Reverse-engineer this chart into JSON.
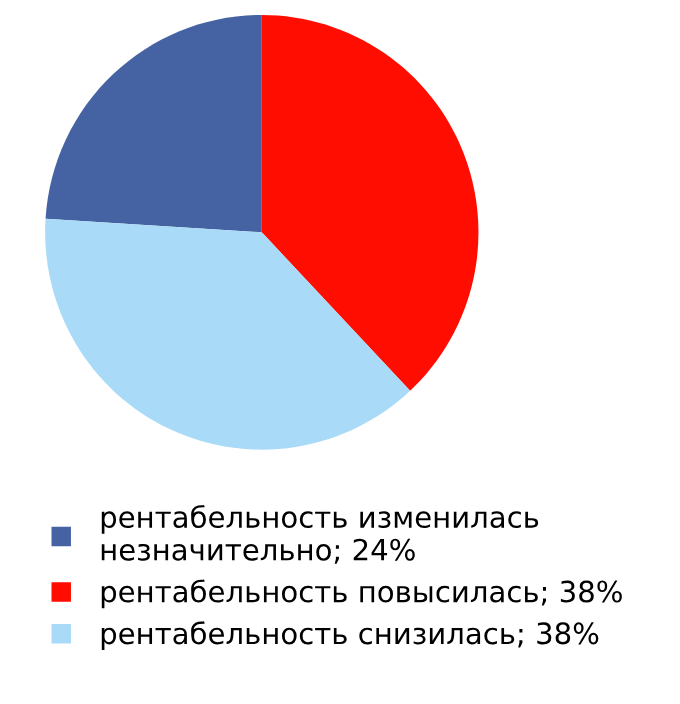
{
  "chart_data": {
    "type": "pie",
    "categories": [
      "рентабельность изменилась\nнезначительно; 24%",
      "рентабельность повысилась; 38%",
      "рентабельность снизилась; 38%"
    ],
    "values": [
      24,
      38,
      38
    ],
    "colors": [
      "#4563a3",
      "#ff0d00",
      "#a9dbf8"
    ],
    "legend": "bottom"
  }
}
